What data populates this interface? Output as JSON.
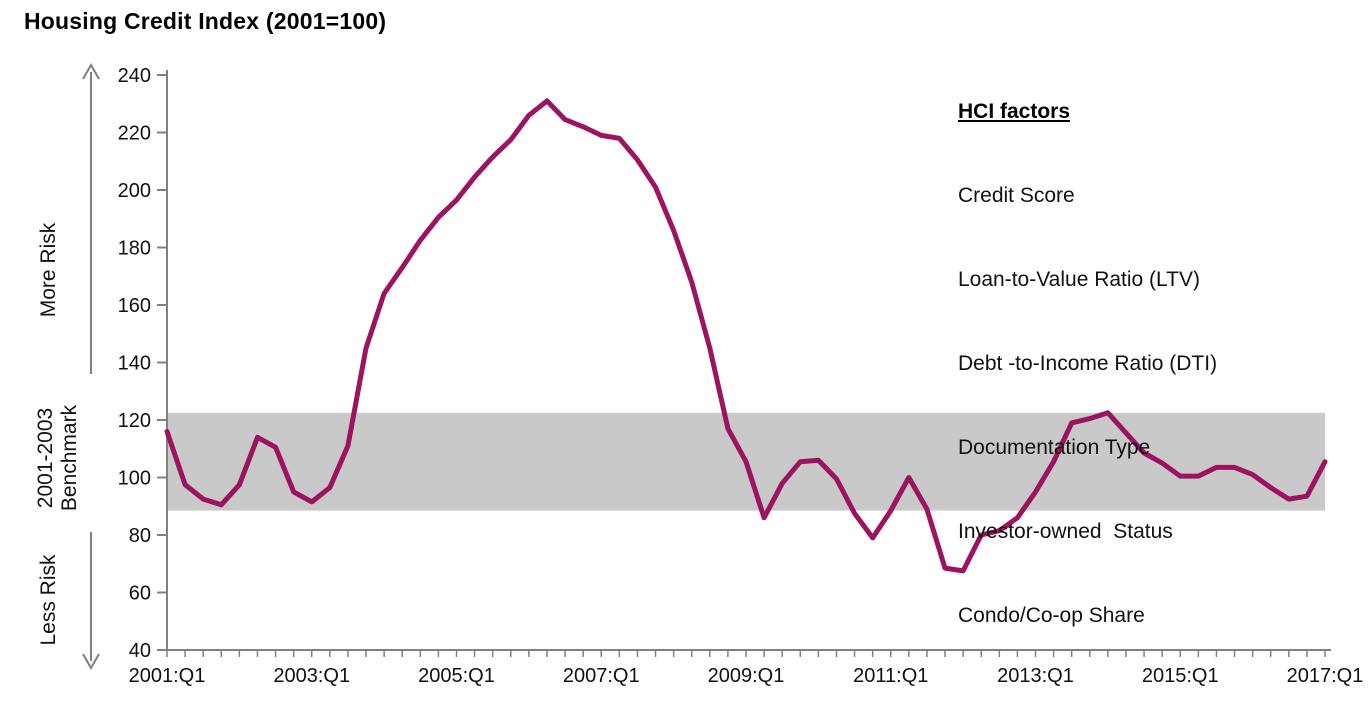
{
  "title": "Housing Credit Index (2001=100)",
  "legend": {
    "heading": "HCI factors",
    "items": [
      "Credit Score",
      "Loan-to-Value Ratio (LTV)",
      "Debt -to-Income Ratio (DTI)",
      "Documentation Type",
      "Investor-owned  Status",
      "Condo/Co-op Share"
    ]
  },
  "axis_annotations": {
    "more_risk": "More Risk",
    "benchmark_line1": "2001-2003",
    "benchmark_line2": "Benchmark",
    "less_risk": "Less Risk"
  },
  "colors": {
    "line": "#9b1361",
    "band": "#c9c9c9",
    "axis": "#808080",
    "arrow": "#7f7f7f",
    "tick_text": "#111111"
  },
  "chart_data": {
    "type": "line",
    "title": "Housing Credit Index (2001=100)",
    "x_frequency": "quarterly",
    "x_start": "2001:Q1",
    "x_end": "2017:Q1",
    "x_tick_labels": [
      "2001:Q1",
      "2003:Q1",
      "2005:Q1",
      "2007:Q1",
      "2009:Q1",
      "2011:Q1",
      "2013:Q1",
      "2015:Q1",
      "2017:Q1"
    ],
    "x_label_every_n_points": 8,
    "y_ticks": [
      240,
      220,
      200,
      180,
      160,
      140,
      120,
      100,
      80,
      60,
      40
    ],
    "ylim": [
      40,
      240
    ],
    "grid": false,
    "benchmark_band": {
      "from": 88.5,
      "to": 122.5,
      "label": "2001-2003 Benchmark"
    },
    "series": [
      {
        "name": "Housing Credit Index",
        "values": [
          116,
          97.5,
          92.5,
          90.5,
          97.5,
          114,
          110.5,
          95,
          91.5,
          96.5,
          111,
          145,
          164,
          173,
          182.5,
          190.5,
          196.5,
          204.5,
          211.5,
          217.5,
          226,
          231,
          224.5,
          222,
          219,
          218,
          210.5,
          201,
          186,
          168,
          145,
          117,
          105.5,
          86,
          98,
          105.5,
          106,
          99.5,
          87.5,
          79,
          88.5,
          100,
          89,
          68.5,
          67.5,
          80,
          81.5,
          86,
          95,
          105.5,
          119,
          120.5,
          122.5,
          115.5,
          108.5,
          105,
          100.5,
          100.5,
          103.5,
          103.5,
          101,
          96.5,
          92.5,
          93.5,
          105.5
        ]
      }
    ]
  }
}
